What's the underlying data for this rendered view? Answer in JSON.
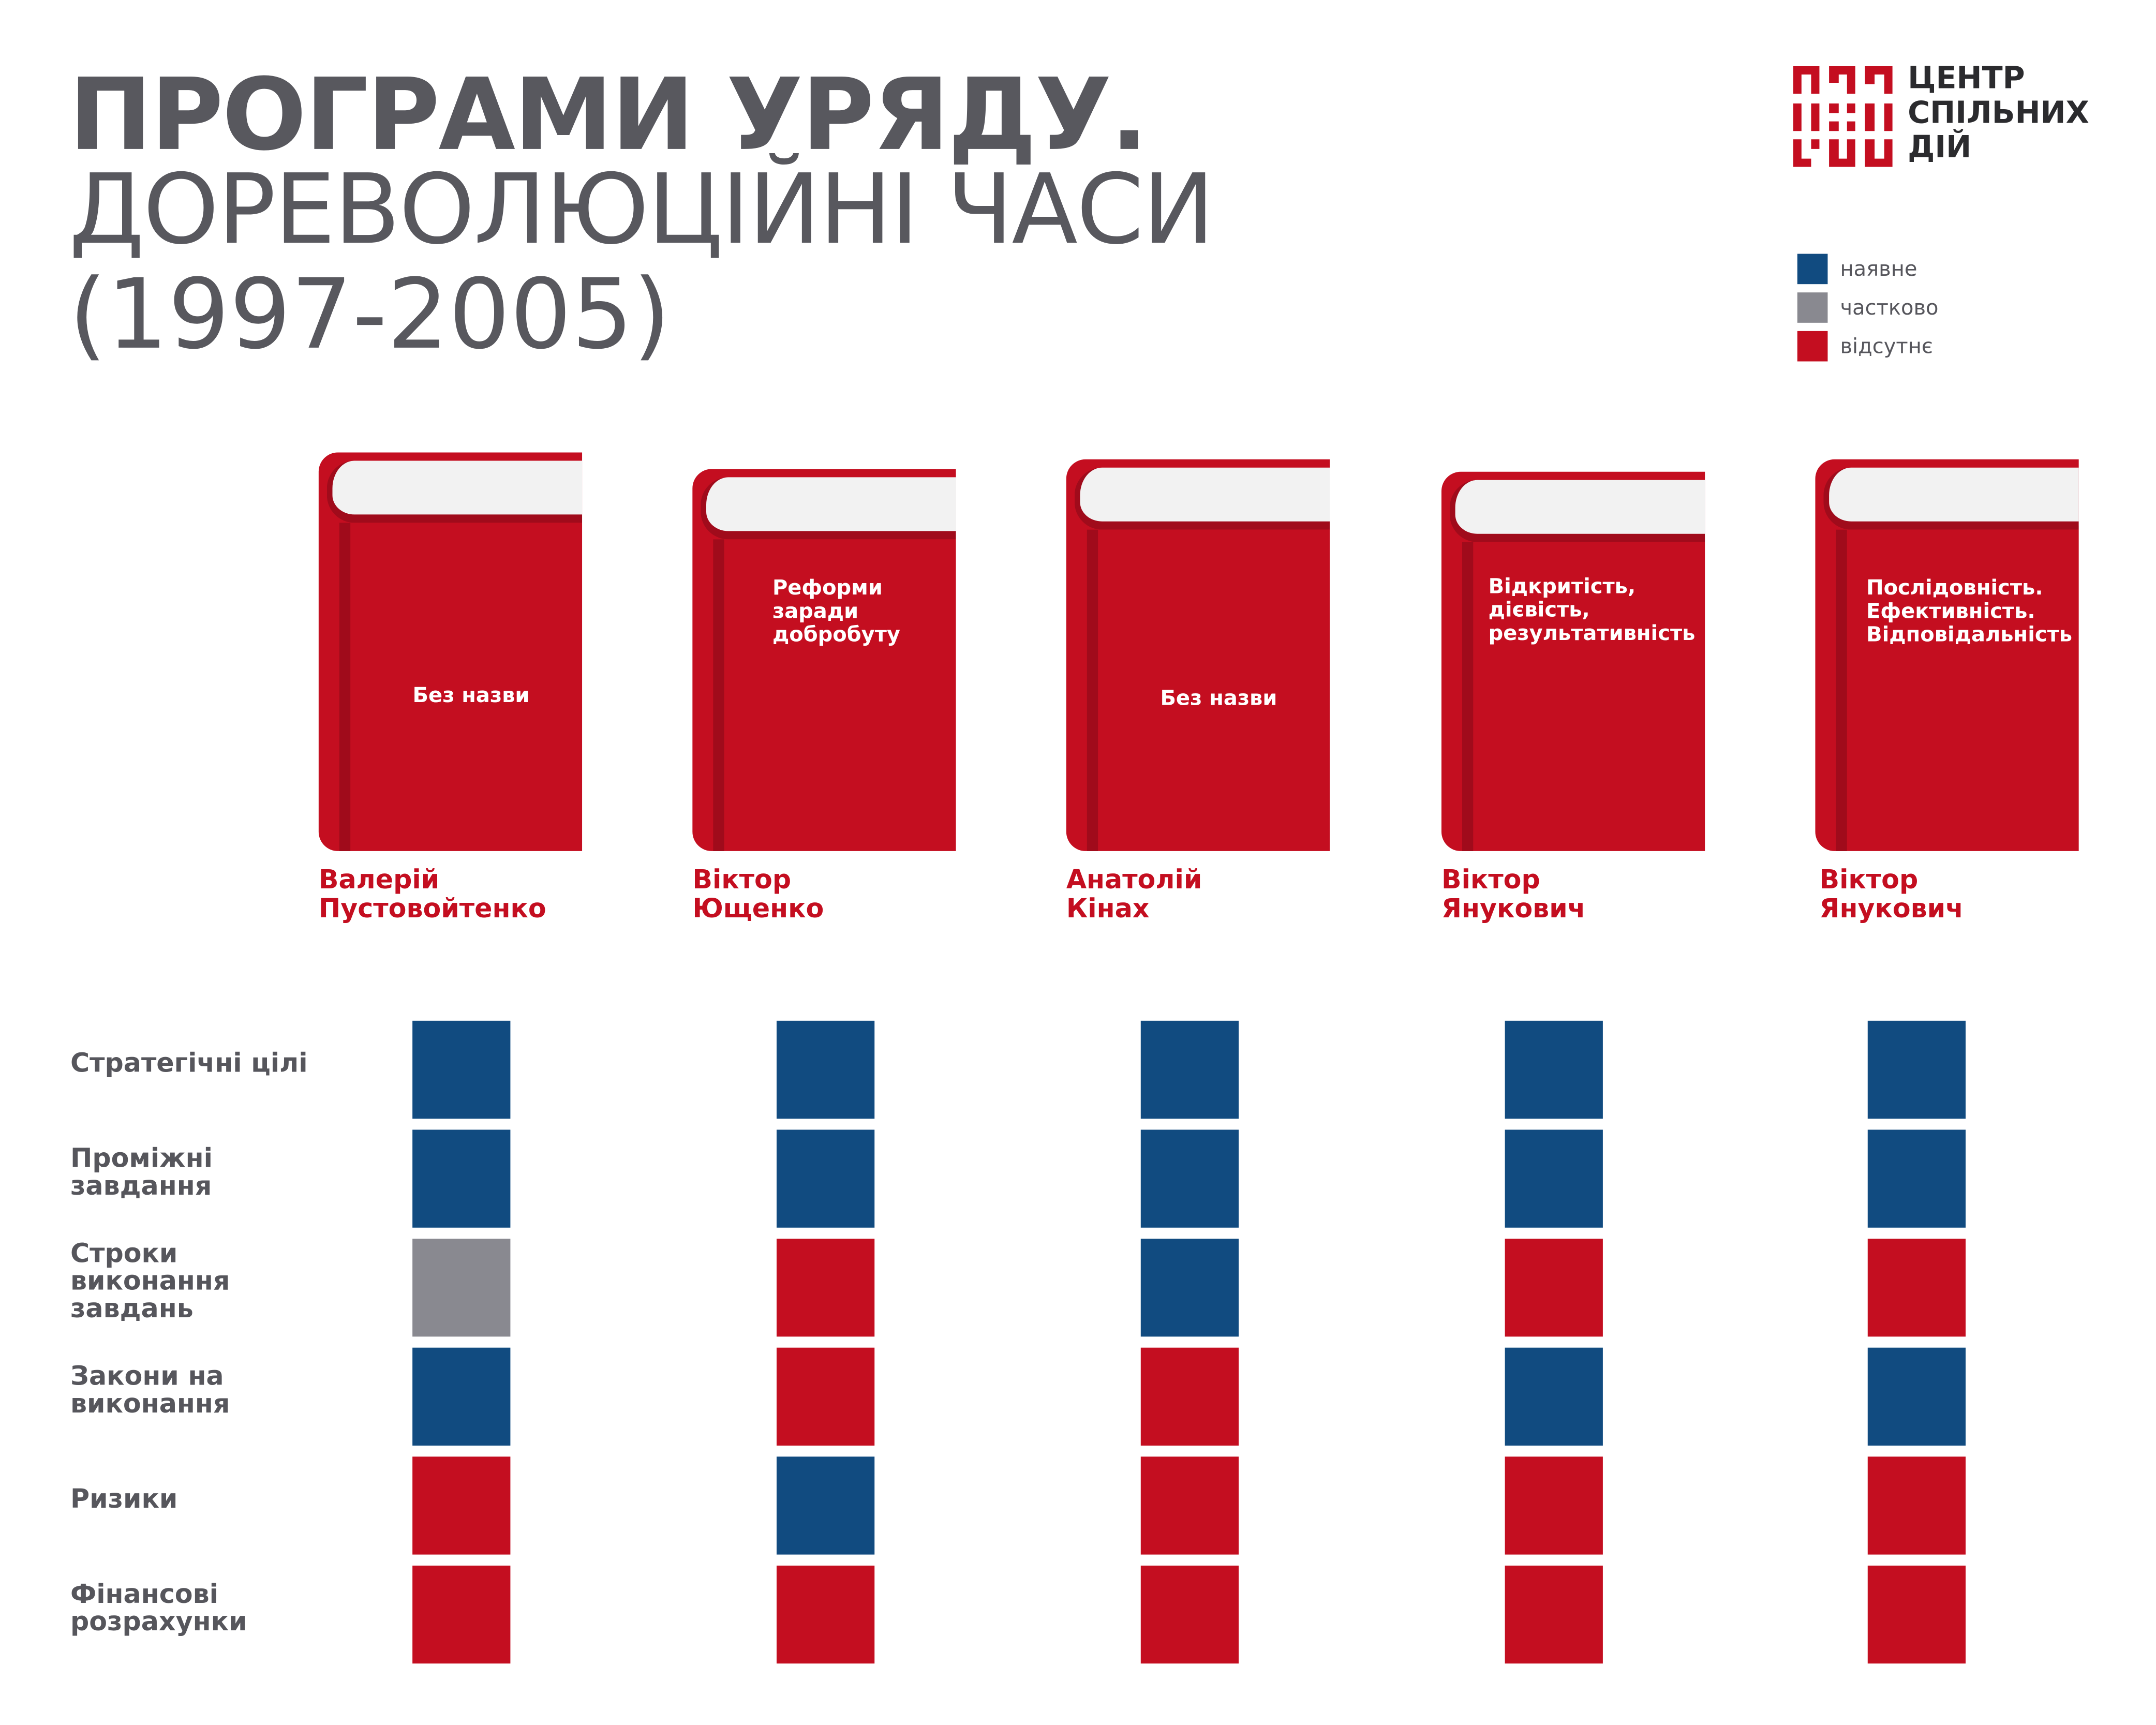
{
  "title": {
    "line1": "ПРОГРАМИ УРЯДУ.",
    "line2": "ДОРЕВОЛЮЦІЙНІ ЧАСИ",
    "line3": "(1997-2005)"
  },
  "logo": {
    "lines": [
      "ЦЕНТР",
      "СПІЛЬНИХ",
      "ДІЙ"
    ],
    "color": "#c40e20"
  },
  "legend": [
    {
      "label": "наявне",
      "status": "present",
      "color": "#114b80"
    },
    {
      "label": "частково",
      "status": "partial",
      "color": "#898990"
    },
    {
      "label": "відсутнє",
      "status": "absent",
      "color": "#c40e20"
    }
  ],
  "programs": [
    {
      "book_title": "Без назви",
      "person": "Валерій\nПустовойтенко",
      "statuses": [
        "present",
        "present",
        "partial",
        "present",
        "absent",
        "absent"
      ]
    },
    {
      "book_title": "Реформи\nзаради\nдобробуту",
      "person": "Віктор\nЮщенко",
      "statuses": [
        "present",
        "present",
        "absent",
        "absent",
        "present",
        "absent"
      ]
    },
    {
      "book_title": "Без назви",
      "person": "Анатолій\nКінах",
      "statuses": [
        "present",
        "present",
        "present",
        "absent",
        "absent",
        "absent"
      ]
    },
    {
      "book_title": "Відкритість,\nдієвість,\nрезультативність",
      "person": "Віктор\nЯнукович",
      "statuses": [
        "present",
        "present",
        "absent",
        "present",
        "absent",
        "absent"
      ]
    },
    {
      "book_title": "Послідовність.\nЕфективність.\nВідповідальність",
      "person": "Віктор\nЯнукович",
      "statuses": [
        "present",
        "present",
        "absent",
        "present",
        "absent",
        "absent"
      ]
    }
  ],
  "criteria": [
    "Стратегічні цілі",
    "Проміжні\nзавдання",
    "Строки\nвиконання\nзавдань",
    "Закони на\nвиконання",
    "Ризики",
    "Фінансові\nрозрахунки"
  ]
}
